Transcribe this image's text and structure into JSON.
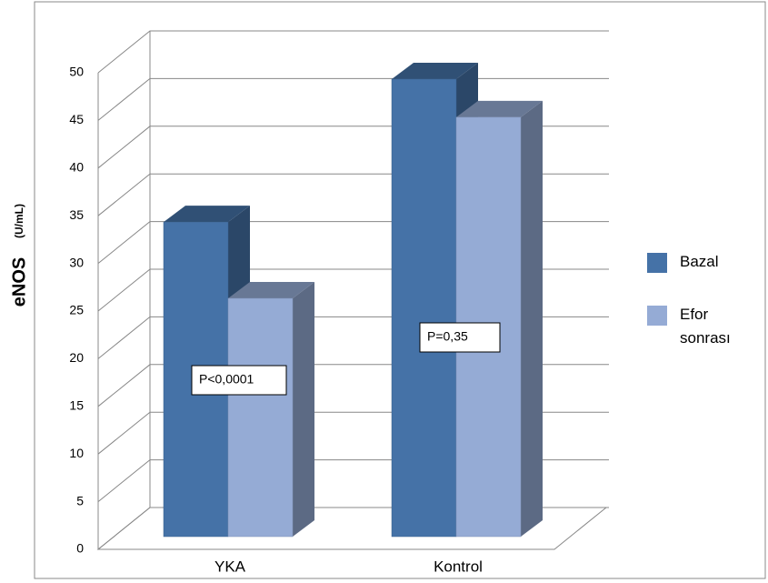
{
  "chart_data": {
    "type": "bar",
    "y_label": "eNOS",
    "y_unit": "(U/mL)",
    "categories": [
      "YKA",
      "Kontrol"
    ],
    "series": [
      {
        "name": "Bazal",
        "color": "#4572a7",
        "values": [
          33,
          48
        ]
      },
      {
        "name": "Efor sonrası",
        "color": "#95abd5",
        "values": [
          25,
          44
        ]
      }
    ],
    "annotations": [
      "P<0,0001",
      "P=0,35"
    ],
    "ylim": [
      0,
      50
    ],
    "yticks": [
      0,
      5,
      10,
      15,
      20,
      25,
      30,
      35,
      40,
      45,
      50
    ],
    "grid": true,
    "legend": "right"
  }
}
